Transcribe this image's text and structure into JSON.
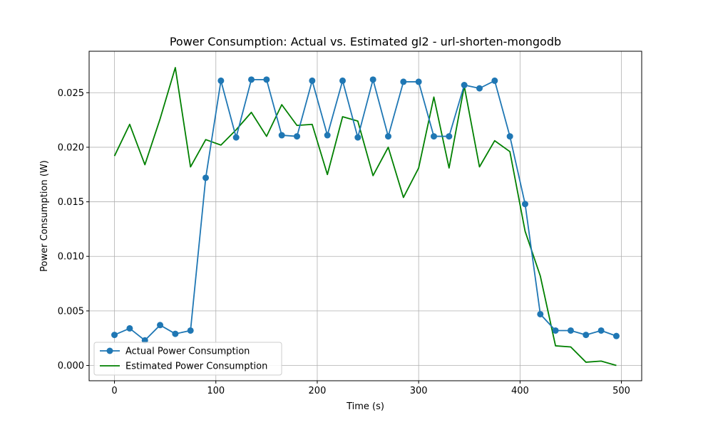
{
  "chart_data": {
    "type": "line",
    "title": "Power Consumption: Actual vs. Estimated gl2 - url-shorten-mongodb",
    "xlabel": "Time (s)",
    "ylabel": "Power Consumption (W)",
    "xlim": [
      -25,
      520
    ],
    "ylim": [
      -0.0014,
      0.0288
    ],
    "xticks": [
      0,
      100,
      200,
      300,
      400,
      500
    ],
    "yticks": [
      0.0,
      0.005,
      0.01,
      0.015,
      0.02,
      0.025
    ],
    "xtick_labels": [
      "0",
      "100",
      "200",
      "300",
      "400",
      "500"
    ],
    "ytick_labels": [
      "0.000",
      "0.005",
      "0.010",
      "0.015",
      "0.020",
      "0.025"
    ],
    "grid": true,
    "legend_position": "lower-left",
    "series": [
      {
        "name": "Actual Power Consumption",
        "color": "#1f77b4",
        "marker": "circle",
        "x": [
          0,
          15,
          30,
          45,
          60,
          75,
          90,
          105,
          120,
          135,
          150,
          165,
          180,
          195,
          210,
          225,
          240,
          255,
          270,
          285,
          300,
          315,
          330,
          345,
          360,
          375,
          390,
          405,
          420,
          435,
          450,
          465,
          480,
          495
        ],
        "values": [
          0.0028,
          0.0034,
          0.0023,
          0.0037,
          0.0029,
          0.0032,
          0.0172,
          0.0261,
          0.0209,
          0.0262,
          0.0262,
          0.0211,
          0.021,
          0.0261,
          0.0211,
          0.0261,
          0.0209,
          0.0262,
          0.021,
          0.026,
          0.026,
          0.021,
          0.021,
          0.0257,
          0.0254,
          0.0261,
          0.021,
          0.0148,
          0.0047,
          0.0032,
          0.0032,
          0.0028,
          0.0032,
          0.0027
        ]
      },
      {
        "name": "Estimated Power Consumption",
        "color": "#008000",
        "marker": "none",
        "x": [
          0,
          15,
          30,
          45,
          60,
          75,
          90,
          105,
          120,
          135,
          150,
          165,
          180,
          195,
          210,
          225,
          240,
          255,
          270,
          285,
          300,
          315,
          330,
          345,
          360,
          375,
          390,
          405,
          420,
          435,
          450,
          465,
          480,
          495
        ],
        "values": [
          0.0192,
          0.0221,
          0.0184,
          0.0226,
          0.0273,
          0.0182,
          0.0207,
          0.0202,
          0.0216,
          0.0232,
          0.021,
          0.0239,
          0.022,
          0.0221,
          0.0175,
          0.0228,
          0.0224,
          0.0174,
          0.02,
          0.0154,
          0.0181,
          0.0246,
          0.0181,
          0.0256,
          0.0182,
          0.0206,
          0.0196,
          0.0123,
          0.0082,
          0.0018,
          0.0017,
          0.0003,
          0.0004,
          0.0
        ]
      }
    ]
  }
}
